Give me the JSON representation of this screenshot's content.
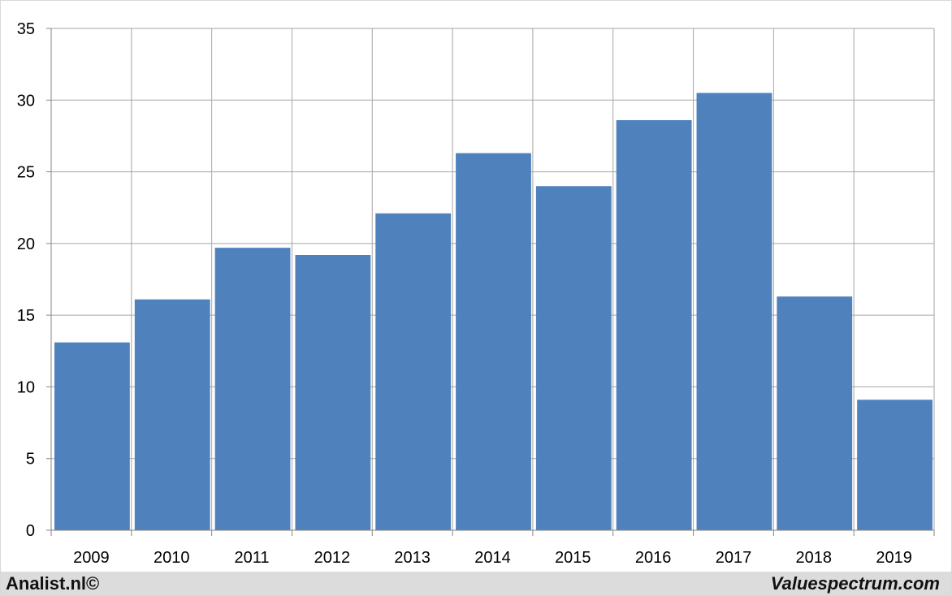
{
  "chart_data": {
    "type": "bar",
    "categories": [
      "2009",
      "2010",
      "2011",
      "2012",
      "2013",
      "2014",
      "2015",
      "2016",
      "2017",
      "2018",
      "2019"
    ],
    "values": [
      13.1,
      16.1,
      19.7,
      19.2,
      22.1,
      26.3,
      24.0,
      28.6,
      30.5,
      16.3,
      9.1
    ],
    "title": "",
    "xlabel": "",
    "ylabel": "",
    "ylim": [
      0,
      35
    ],
    "yticks": [
      "0",
      "5",
      "10",
      "15",
      "20",
      "25",
      "30",
      "35"
    ],
    "grid": true,
    "legend": "none",
    "bar_color": "#4f81bd"
  },
  "footer": {
    "left": "Analist.nl©",
    "right": "Valuespectrum.com"
  }
}
